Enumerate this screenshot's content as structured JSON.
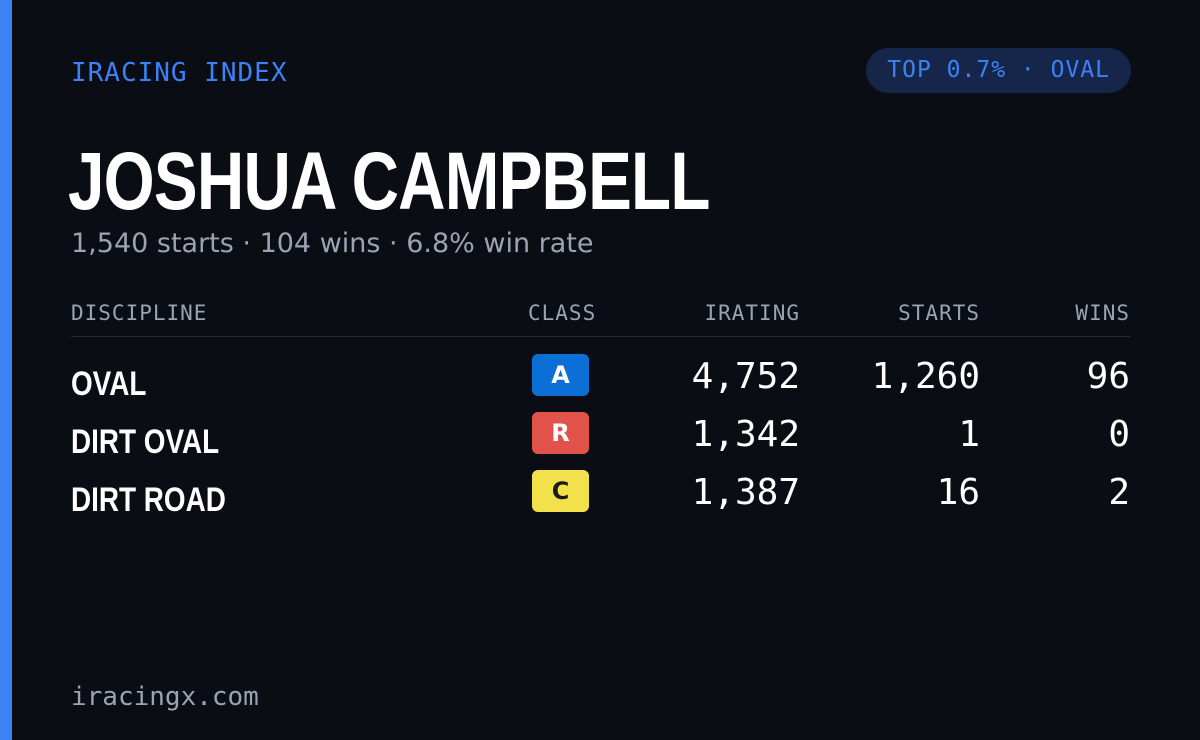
{
  "brand": "IRACING INDEX",
  "badge_text": "TOP 0.7% · OVAL",
  "driver": {
    "name": "JOSHUA CAMPBELL",
    "summary": "1,540 starts · 104 wins · 6.8% win rate"
  },
  "table": {
    "headers": {
      "discipline": "DISCIPLINE",
      "class": "CLASS",
      "irating": "IRATING",
      "starts": "STARTS",
      "wins": "WINS"
    },
    "rows": [
      {
        "discipline": "OVAL",
        "class": "A",
        "class_bg": "#0b6fd6",
        "class_fg": "#ffffff",
        "irating": "4,752",
        "starts": "1,260",
        "wins": "96"
      },
      {
        "discipline": "DIRT OVAL",
        "class": "R",
        "class_bg": "#e0524a",
        "class_fg": "#ffffff",
        "irating": "1,342",
        "starts": "1",
        "wins": "0"
      },
      {
        "discipline": "DIRT ROAD",
        "class": "C",
        "class_bg": "#f2e14b",
        "class_fg": "#1a1a1a",
        "irating": "1,387",
        "starts": "16",
        "wins": "2"
      }
    ]
  },
  "footer": "iracingx.com",
  "colors": {
    "background": "#0a0d14",
    "accent": "#3b82f6",
    "muted_text": "#9aa3b2",
    "pill_bg": "#16264a"
  }
}
